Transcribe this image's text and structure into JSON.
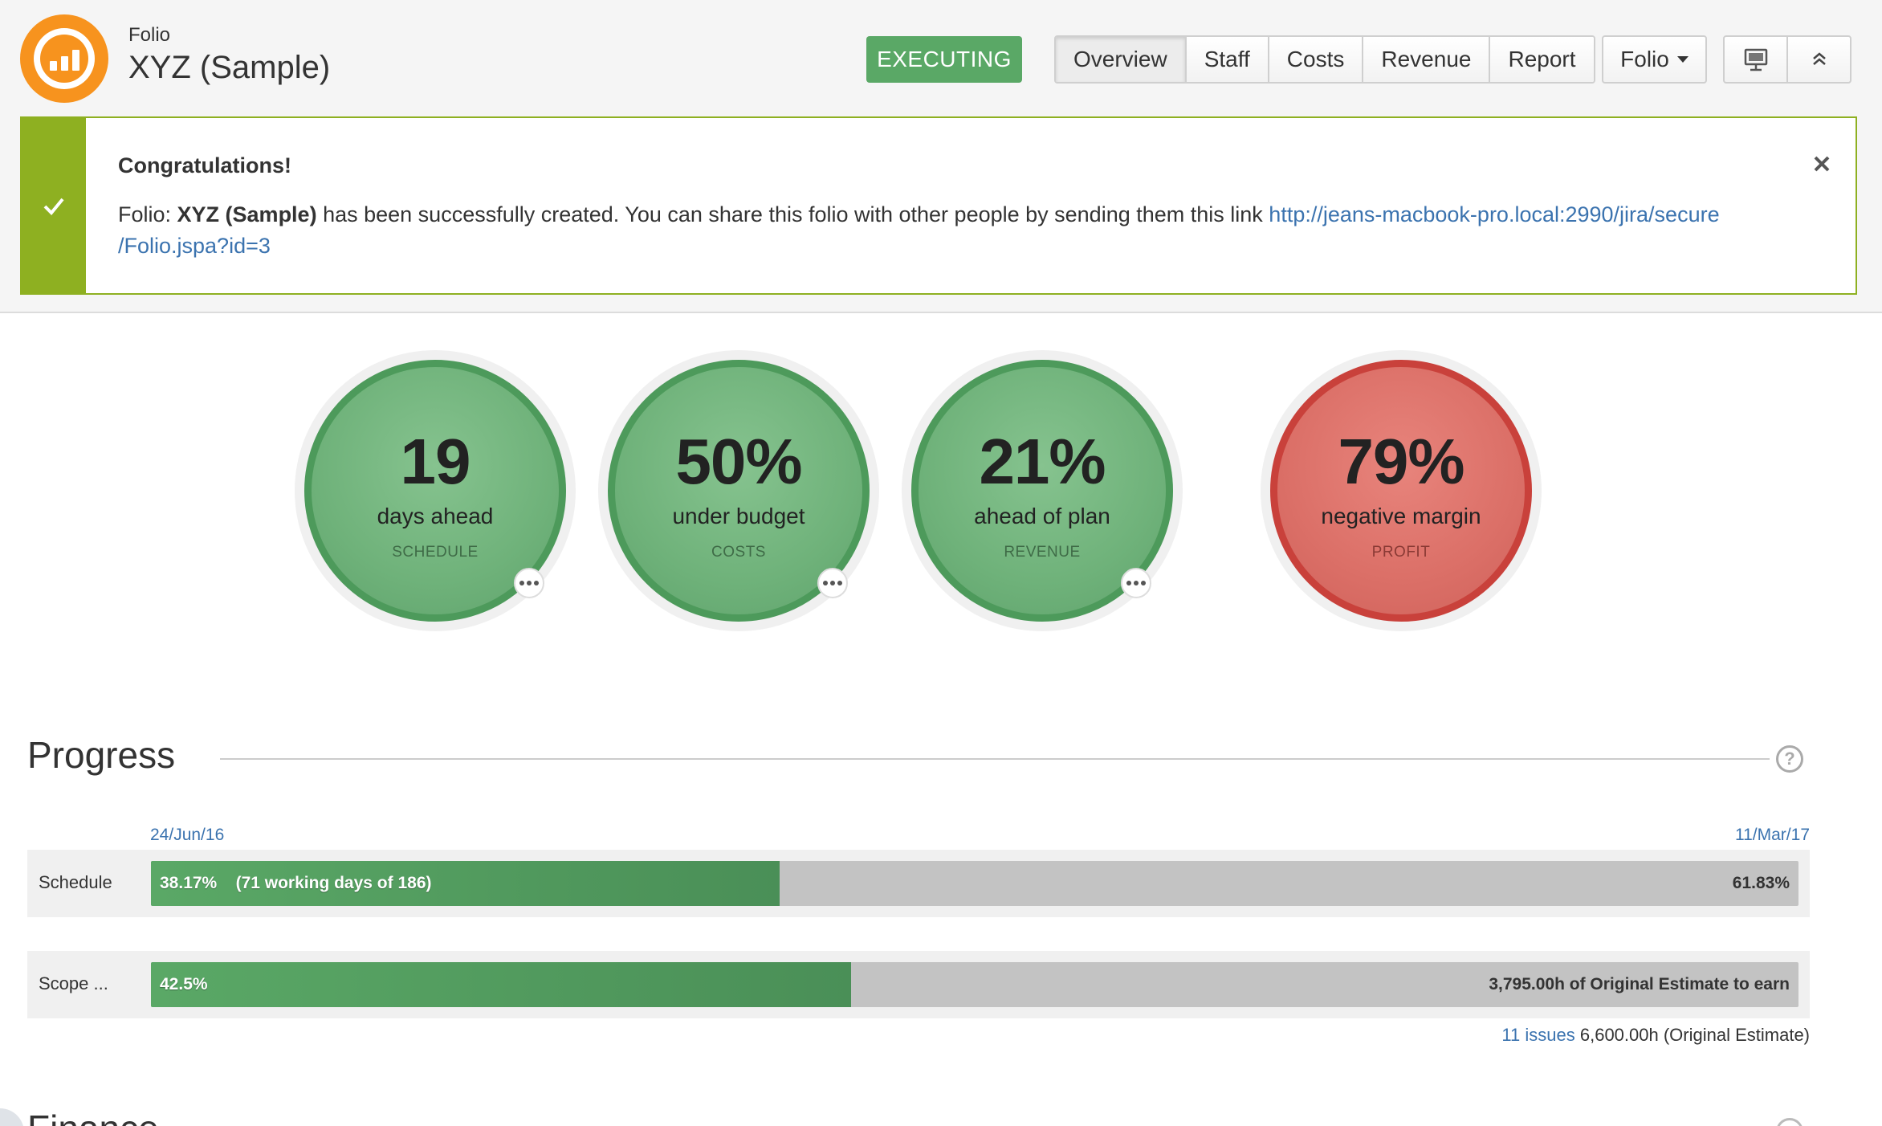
{
  "header": {
    "subtitle": "Folio",
    "title": "XYZ (Sample)",
    "status": "EXECUTING",
    "tabs": [
      {
        "label": "Overview"
      },
      {
        "label": "Staff"
      },
      {
        "label": "Costs"
      },
      {
        "label": "Revenue"
      },
      {
        "label": "Report"
      }
    ],
    "folio_menu": "Folio",
    "icons": [
      "presentation-icon",
      "collapse-up-icon"
    ]
  },
  "message": {
    "heading": "Congratulations!",
    "text_before": "Folio: ",
    "folio_name": "XYZ (Sample)",
    "text_after": " has been successfully created. You can share this folio with other people by sending them this link ",
    "link_line1": "http://jeans-macbook-pro.local:2990/jira/secure",
    "link_line2": "/Folio.jspa?id=3"
  },
  "metrics": [
    {
      "value": "19",
      "label": "days ahead",
      "category": "SCHEDULE",
      "status": "green"
    },
    {
      "value": "50%",
      "label": "under budget",
      "category": "COSTS",
      "status": "green"
    },
    {
      "value": "21%",
      "label": "ahead of plan",
      "category": "REVENUE",
      "status": "green"
    },
    {
      "value": "79%",
      "label": "negative margin",
      "category": "PROFIT",
      "status": "red"
    }
  ],
  "progress": {
    "title": "Progress",
    "start_date": "24/Jun/16",
    "end_date": "11/Mar/17",
    "schedule": {
      "label": "Schedule",
      "percent": "38.17%",
      "detail": "(71 working days of 186)",
      "remaining": "61.83%",
      "fill_fraction": 0.3817
    },
    "scope": {
      "label": "Scope ...",
      "percent": "42.5%",
      "remaining": "3,795.00h of Original Estimate to earn",
      "fill_fraction": 0.425
    },
    "issues_link": "11 issues",
    "estimate": "6,600.00h (Original Estimate)"
  },
  "finance": {
    "title": "Finance"
  },
  "colors": {
    "success": "#5aa866",
    "danger": "#c9413b",
    "accent": "#f7931e",
    "link": "#3b73af",
    "message_border": "#8eb021"
  }
}
